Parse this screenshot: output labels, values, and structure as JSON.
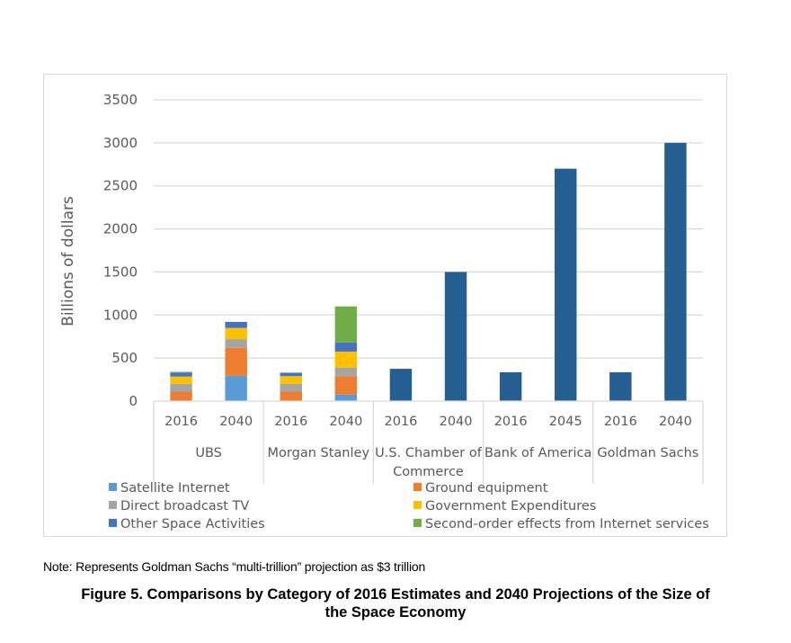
{
  "chart_data": {
    "type": "bar",
    "stacked": true,
    "title": "",
    "ylabel": "Billions of dollars",
    "xlabel": "",
    "ylim": [
      0,
      3500
    ],
    "yticks": [
      0,
      500,
      1000,
      1500,
      2000,
      2500,
      3000,
      3500
    ],
    "grid": true,
    "legend_position": "bottom",
    "groups": [
      {
        "name": "UBS",
        "years": [
          "2016",
          "2040"
        ]
      },
      {
        "name": "Morgan Stanley",
        "years": [
          "2016",
          "2040"
        ]
      },
      {
        "name": "U.S. Chamber of Commerce",
        "name_lines": [
          "U.S. Chamber of",
          "Commerce"
        ],
        "years": [
          "2016",
          "2040"
        ]
      },
      {
        "name": "Bank of America",
        "years": [
          "2016",
          "2045"
        ]
      },
      {
        "name": "Goldman Sachs",
        "years": [
          "2016",
          "2040"
        ]
      }
    ],
    "categories": [
      "UBS 2016",
      "UBS 2040",
      "Morgan Stanley 2016",
      "Morgan Stanley 2040",
      "U.S. Chamber of Commerce 2016",
      "U.S. Chamber of Commerce 2040",
      "Bank of America 2016",
      "Bank of America 2045",
      "Goldman Sachs 2016",
      "Goldman Sachs 2040"
    ],
    "series": [
      {
        "name": "Satellite Internet",
        "color": "#5b9bd5",
        "values": [
          0,
          295,
          0,
          75,
          0,
          0,
          0,
          0,
          0,
          0
        ]
      },
      {
        "name": "Ground equipment",
        "color": "#ed7d31",
        "values": [
          110,
          325,
          110,
          215,
          0,
          0,
          0,
          0,
          0,
          0
        ]
      },
      {
        "name": "Direct broadcast TV",
        "color": "#a5a5a5",
        "values": [
          90,
          100,
          90,
          100,
          0,
          0,
          0,
          0,
          0,
          0
        ]
      },
      {
        "name": "Government Expenditures",
        "color": "#ffc000",
        "values": [
          85,
          130,
          90,
          185,
          0,
          0,
          0,
          0,
          0,
          0
        ]
      },
      {
        "name": "Other Space Activities",
        "color": "#4472c4",
        "values": [
          45,
          70,
          40,
          105,
          0,
          0,
          0,
          0,
          0,
          0
        ]
      },
      {
        "name": "Second-order effects from Internet services",
        "color": "#70ad47",
        "values": [
          10,
          0,
          0,
          420,
          0,
          0,
          0,
          0,
          0,
          0
        ]
      },
      {
        "name": "Total",
        "color": "#255e91",
        "show_in_legend": false,
        "values": [
          0,
          0,
          0,
          0,
          375,
          1500,
          335,
          2700,
          335,
          3000
        ]
      }
    ],
    "legend": [
      {
        "name": "Satellite Internet",
        "color": "#5b9bd5"
      },
      {
        "name": "Ground equipment",
        "color": "#ed7d31"
      },
      {
        "name": "Direct broadcast TV",
        "color": "#a5a5a5"
      },
      {
        "name": "Government Expenditures",
        "color": "#ffc000"
      },
      {
        "name": "Other Space Activities",
        "color": "#4472c4"
      },
      {
        "name": "Second-order effects from Internet services",
        "color": "#70ad47"
      }
    ]
  },
  "note": "Note: Represents Goldman Sachs “multi-trillion” projection as $3 trillion",
  "caption": {
    "line1": "Figure 5. Comparisons by Category of 2016 Estimates and 2040 Projections of the Size of",
    "line2": "the Space Economy"
  }
}
